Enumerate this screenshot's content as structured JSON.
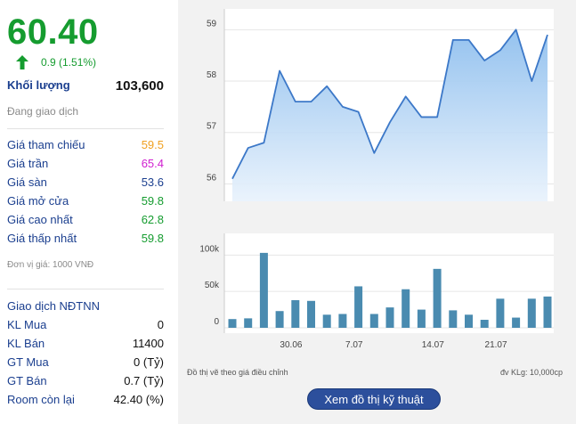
{
  "quote": {
    "price": "60.40",
    "change": "0.9 (1.51%)",
    "volume_label": "Khối lượng",
    "volume_value": "103,600",
    "status": "Đang giao dịch"
  },
  "prices": [
    {
      "label": "Giá tham chiếu",
      "value": "59.5",
      "color": "#f0a020"
    },
    {
      "label": "Giá trần",
      "value": "65.4",
      "color": "#d020d0"
    },
    {
      "label": "Giá sàn",
      "value": "53.6",
      "color": "#1b3f8f"
    },
    {
      "label": "Giá mở cửa",
      "value": "59.8",
      "color": "#159c2f"
    },
    {
      "label": "Giá cao nhất",
      "value": "62.8",
      "color": "#159c2f"
    },
    {
      "label": "Giá thấp nhất",
      "value": "59.8",
      "color": "#159c2f"
    }
  ],
  "unit_note": "Đơn vị giá: 1000 VNĐ",
  "foreign": {
    "title": "Giao dịch NĐTNN",
    "rows": [
      {
        "label": "KL Mua",
        "value": "0"
      },
      {
        "label": "KL Bán",
        "value": "11400"
      },
      {
        "label": "GT Mua",
        "value": "0 (Tỷ)"
      },
      {
        "label": "GT Bán",
        "value": "0.7 (Tỷ)"
      },
      {
        "label": "Room còn lại",
        "value": "42.40 (%)"
      }
    ]
  },
  "chart_notes": {
    "left": "Đồ thị vẽ theo giá điều chỉnh",
    "right": "đv KLg: 10,000cp"
  },
  "button_label": "Xem đồ thị kỹ thuật",
  "colors": {
    "up": "#159c2f",
    "line": "#3c78c8",
    "bar": "#4a8bb0",
    "button": "#2c4f9c"
  },
  "chart_data": [
    {
      "type": "area",
      "ylim": [
        55.8,
        59.3
      ],
      "yticks": [
        "56",
        "57",
        "58",
        "59"
      ],
      "values": [
        56.1,
        56.7,
        56.8,
        58.2,
        57.6,
        57.6,
        57.9,
        57.5,
        57.4,
        56.6,
        57.2,
        57.7,
        57.3,
        57.3,
        58.8,
        58.8,
        58.4,
        58.6,
        59.0,
        58.0,
        58.9
      ]
    },
    {
      "type": "bar",
      "ylim": [
        0,
        120
      ],
      "yticks": [
        "0",
        "50k",
        "100k"
      ],
      "xticks": [
        "30.06",
        "7.07",
        "14.07",
        "21.07"
      ],
      "values": [
        12,
        13,
        103,
        23,
        38,
        37,
        18,
        19,
        57,
        19,
        28,
        53,
        25,
        81,
        24,
        18,
        11,
        40,
        14,
        40,
        43
      ]
    }
  ]
}
